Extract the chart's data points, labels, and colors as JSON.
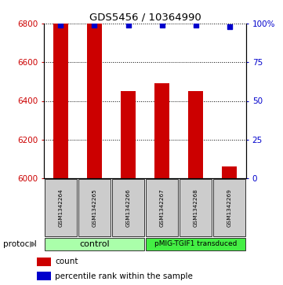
{
  "title": "GDS5456 / 10364990",
  "samples": [
    "GSM1342264",
    "GSM1342265",
    "GSM1342266",
    "GSM1342267",
    "GSM1342268",
    "GSM1342269"
  ],
  "counts": [
    6800,
    6800,
    6450,
    6490,
    6450,
    6060
  ],
  "percentile_ranks": [
    99,
    99,
    99,
    99,
    99,
    98
  ],
  "ylim_left": [
    6000,
    6800
  ],
  "ylim_right": [
    0,
    100
  ],
  "yticks_left": [
    6000,
    6200,
    6400,
    6600,
    6800
  ],
  "yticks_right": [
    0,
    25,
    50,
    75,
    100
  ],
  "bar_color": "#cc0000",
  "dot_color": "#0000cc",
  "bar_width": 0.45,
  "protocol_groups": [
    {
      "label": "control",
      "start": 0,
      "end": 2,
      "color": "#aaffaa"
    },
    {
      "label": "pMIG-TGIF1 transduced",
      "start": 3,
      "end": 5,
      "color": "#44ee44"
    }
  ],
  "protocol_label": "protocol",
  "legend_count_label": "count",
  "legend_pct_label": "percentile rank within the sample",
  "sample_box_color": "#cccccc",
  "left_axis_color": "#cc0000",
  "right_axis_color": "#0000cc",
  "background_color": "#ffffff",
  "right_labels": [
    "0",
    "25",
    "50",
    "75",
    "100%"
  ]
}
